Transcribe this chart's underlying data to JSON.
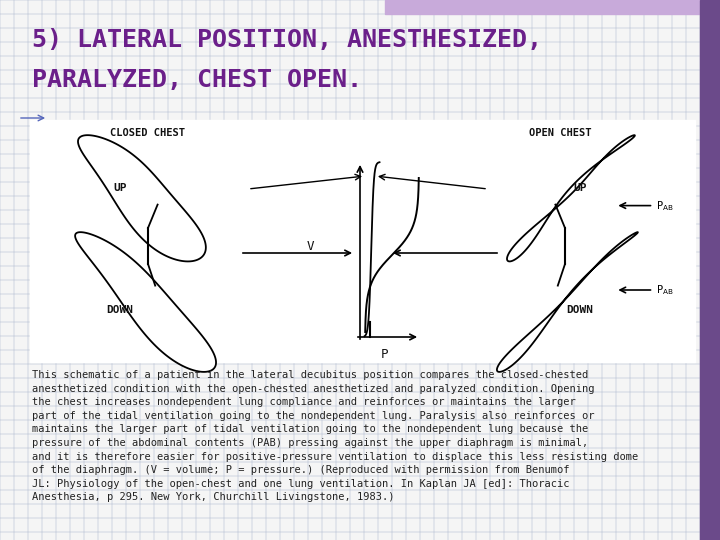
{
  "title_line1": "5) LATERAL POSITION, ANESTHESIZED,",
  "title_line2": "PARALYZED, CHEST OPEN.",
  "title_color": "#6B1F8A",
  "title_fontsize": 18,
  "title_font": "monospace",
  "bg_color": "#f5f5f5",
  "grid_color": "#aab4cc",
  "header_bar_color": "#c8aada",
  "right_bar_color": "#6B4A8A",
  "body_text": "This schematic of a patient in the lateral decubitus position compares the closed-chested\nanesthetized condition with the open-chested anesthetized and paralyzed condition. Opening\nthe chest increases nondependent lung compliance and reinforces or maintains the larger\npart of the tidal ventilation going to the nondependent lung. Paralysis also reinforces or\nmaintains the larger part of tidal ventilation going to the nondependent lung because the\npressure of the abdominal contents (PAB) pressing against the upper diaphragm is minimal,\nand it is therefore easier for positive-pressure ventilation to displace this less resisting dome\nof the diaphragm. (V = volume; P = pressure.) (Reproduced with permission from Benumof\nJL: Physiology of the open-chest and one lung ventilation. In Kaplan JA [ed]: Thoracic\nAnesthesia, p 295. New York, Churchill Livingstone, 1983.)",
  "body_fontsize": 7.5,
  "body_color": "#222222",
  "body_font": "monospace",
  "closed_chest_label": "CLOSED CHEST",
  "open_chest_label": "OPEN CHEST",
  "label_fontsize": 7.5,
  "label_font": "monospace",
  "label_color": "#111111",
  "up_label": "UP",
  "down_label": "DOWN",
  "v_label": "V",
  "p_label": "P"
}
